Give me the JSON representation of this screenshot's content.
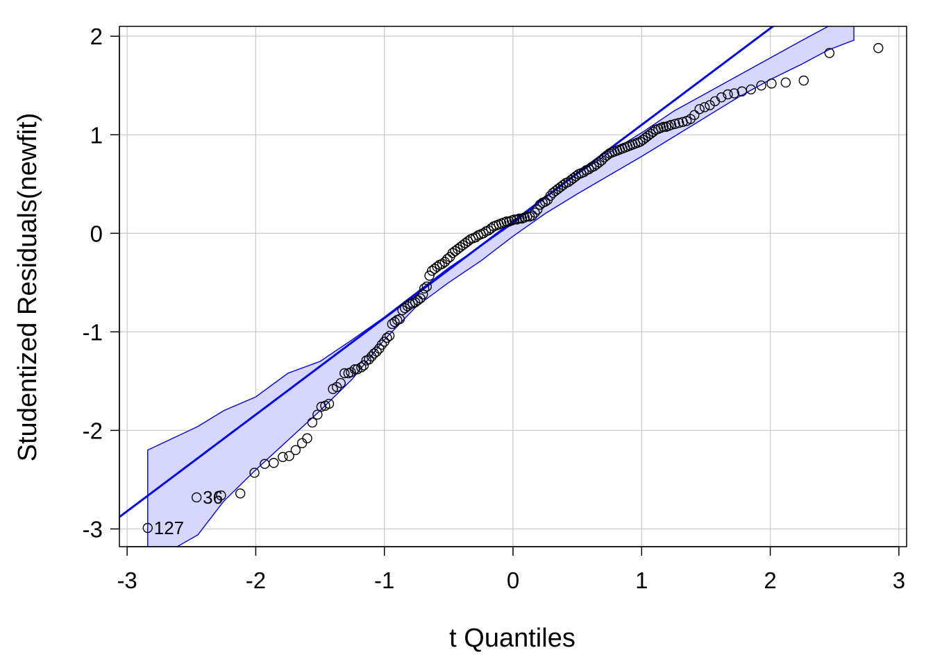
{
  "chart_data": {
    "type": "scatter",
    "title": "",
    "xlabel": "t Quantiles",
    "ylabel": "Studentized Residuals(newfit)",
    "xlim": [
      -3.06,
      3.06
    ],
    "ylim": [
      -3.18,
      2.1
    ],
    "xticks": [
      "-3",
      "-2",
      "-1",
      "0",
      "1",
      "2",
      "3"
    ],
    "yticks": [
      "-3",
      "-2",
      "-1",
      "0",
      "1",
      "2"
    ],
    "grid": true,
    "colors": {
      "points": "#000000",
      "line": "#0000ee",
      "envelope_fill": "#d6d6ff",
      "envelope_edge": "#0000ee",
      "grid": "#cccccc",
      "axis": "#000000"
    },
    "reference_line": {
      "intercept": 0.12,
      "slope": 0.98
    },
    "envelope": {
      "x": [
        -2.84,
        -2.45,
        -2.25,
        -2.0,
        -1.75,
        -1.5,
        -1.25,
        -1.0,
        -0.75,
        -0.5,
        -0.25,
        0.0,
        0.25,
        0.5,
        0.75,
        1.0,
        1.25,
        1.5,
        1.75,
        2.0,
        2.25,
        2.45,
        2.65
      ],
      "upper": [
        -2.2,
        -1.96,
        -1.8,
        -1.66,
        -1.42,
        -1.3,
        -1.08,
        -0.85,
        -0.6,
        -0.35,
        -0.13,
        0.1,
        0.36,
        0.6,
        0.82,
        1.02,
        1.24,
        1.42,
        1.6,
        1.78,
        1.96,
        2.1,
        2.24
      ],
      "lower": [
        -3.35,
        -3.06,
        -2.72,
        -2.4,
        -2.1,
        -1.8,
        -1.48,
        -1.08,
        -0.74,
        -0.5,
        -0.28,
        -0.03,
        0.2,
        0.4,
        0.59,
        0.78,
        0.98,
        1.18,
        1.38,
        1.56,
        1.72,
        1.86,
        1.96
      ]
    },
    "points": [
      {
        "x": -2.84,
        "y": -2.99
      },
      {
        "x": -2.46,
        "y": -2.68
      },
      {
        "x": -2.27,
        "y": -2.66
      },
      {
        "x": -2.12,
        "y": -2.64
      },
      {
        "x": -2.01,
        "y": -2.43
      },
      {
        "x": -1.93,
        "y": -2.34
      },
      {
        "x": -1.86,
        "y": -2.33
      },
      {
        "x": -1.79,
        "y": -2.27
      },
      {
        "x": -1.74,
        "y": -2.26
      },
      {
        "x": -1.69,
        "y": -2.2
      },
      {
        "x": -1.64,
        "y": -2.13
      },
      {
        "x": -1.6,
        "y": -2.08
      },
      {
        "x": -1.56,
        "y": -1.92
      },
      {
        "x": -1.52,
        "y": -1.84
      },
      {
        "x": -1.49,
        "y": -1.76
      },
      {
        "x": -1.46,
        "y": -1.75
      },
      {
        "x": -1.43,
        "y": -1.73
      },
      {
        "x": -1.4,
        "y": -1.58
      },
      {
        "x": -1.37,
        "y": -1.56
      },
      {
        "x": -1.34,
        "y": -1.52
      },
      {
        "x": -1.31,
        "y": -1.42
      },
      {
        "x": -1.28,
        "y": -1.42
      },
      {
        "x": -1.26,
        "y": -1.41
      },
      {
        "x": -1.23,
        "y": -1.38
      },
      {
        "x": -1.21,
        "y": -1.38
      },
      {
        "x": -1.18,
        "y": -1.36
      },
      {
        "x": -1.16,
        "y": -1.34
      },
      {
        "x": -1.14,
        "y": -1.29
      },
      {
        "x": -1.12,
        "y": -1.28
      },
      {
        "x": -1.1,
        "y": -1.25
      },
      {
        "x": -1.08,
        "y": -1.22
      },
      {
        "x": -1.06,
        "y": -1.2
      },
      {
        "x": -1.04,
        "y": -1.17
      },
      {
        "x": -1.02,
        "y": -1.13
      },
      {
        "x": -1.0,
        "y": -1.1
      },
      {
        "x": -0.98,
        "y": -1.06
      },
      {
        "x": -0.96,
        "y": -1.04
      },
      {
        "x": -0.94,
        "y": -0.92
      },
      {
        "x": -0.92,
        "y": -0.9
      },
      {
        "x": -0.9,
        "y": -0.88
      },
      {
        "x": -0.88,
        "y": -0.87
      },
      {
        "x": -0.86,
        "y": -0.78
      },
      {
        "x": -0.84,
        "y": -0.76
      },
      {
        "x": -0.82,
        "y": -0.74
      },
      {
        "x": -0.8,
        "y": -0.72
      },
      {
        "x": -0.78,
        "y": -0.71
      },
      {
        "x": -0.76,
        "y": -0.7
      },
      {
        "x": -0.74,
        "y": -0.68
      },
      {
        "x": -0.72,
        "y": -0.66
      },
      {
        "x": -0.7,
        "y": -0.62
      },
      {
        "x": -0.69,
        "y": -0.56
      },
      {
        "x": -0.67,
        "y": -0.54
      },
      {
        "x": -0.65,
        "y": -0.43
      },
      {
        "x": -0.63,
        "y": -0.38
      },
      {
        "x": -0.61,
        "y": -0.36
      },
      {
        "x": -0.59,
        "y": -0.34
      },
      {
        "x": -0.57,
        "y": -0.32
      },
      {
        "x": -0.55,
        "y": -0.31
      },
      {
        "x": -0.53,
        "y": -0.29
      },
      {
        "x": -0.51,
        "y": -0.26
      },
      {
        "x": -0.49,
        "y": -0.24
      },
      {
        "x": -0.47,
        "y": -0.2
      },
      {
        "x": -0.45,
        "y": -0.18
      },
      {
        "x": -0.43,
        "y": -0.16
      },
      {
        "x": -0.41,
        "y": -0.14
      },
      {
        "x": -0.39,
        "y": -0.12
      },
      {
        "x": -0.37,
        "y": -0.1
      },
      {
        "x": -0.35,
        "y": -0.08
      },
      {
        "x": -0.33,
        "y": -0.06
      },
      {
        "x": -0.31,
        "y": -0.05
      },
      {
        "x": -0.29,
        "y": -0.04
      },
      {
        "x": -0.27,
        "y": -0.02
      },
      {
        "x": -0.25,
        "y": -0.01
      },
      {
        "x": -0.23,
        "y": 0.0
      },
      {
        "x": -0.21,
        "y": 0.02
      },
      {
        "x": -0.19,
        "y": 0.03
      },
      {
        "x": -0.17,
        "y": 0.05
      },
      {
        "x": -0.15,
        "y": 0.07
      },
      {
        "x": -0.13,
        "y": 0.08
      },
      {
        "x": -0.11,
        "y": 0.09
      },
      {
        "x": -0.09,
        "y": 0.1
      },
      {
        "x": -0.07,
        "y": 0.11
      },
      {
        "x": -0.05,
        "y": 0.12
      },
      {
        "x": -0.03,
        "y": 0.12
      },
      {
        "x": -0.01,
        "y": 0.13
      },
      {
        "x": 0.01,
        "y": 0.14
      },
      {
        "x": 0.03,
        "y": 0.14
      },
      {
        "x": 0.05,
        "y": 0.15
      },
      {
        "x": 0.07,
        "y": 0.15
      },
      {
        "x": 0.09,
        "y": 0.16
      },
      {
        "x": 0.11,
        "y": 0.17
      },
      {
        "x": 0.13,
        "y": 0.17
      },
      {
        "x": 0.15,
        "y": 0.18
      },
      {
        "x": 0.17,
        "y": 0.21
      },
      {
        "x": 0.19,
        "y": 0.24
      },
      {
        "x": 0.21,
        "y": 0.29
      },
      {
        "x": 0.23,
        "y": 0.31
      },
      {
        "x": 0.25,
        "y": 0.32
      },
      {
        "x": 0.27,
        "y": 0.34
      },
      {
        "x": 0.29,
        "y": 0.38
      },
      {
        "x": 0.31,
        "y": 0.41
      },
      {
        "x": 0.33,
        "y": 0.43
      },
      {
        "x": 0.35,
        "y": 0.45
      },
      {
        "x": 0.37,
        "y": 0.47
      },
      {
        "x": 0.39,
        "y": 0.49
      },
      {
        "x": 0.41,
        "y": 0.51
      },
      {
        "x": 0.43,
        "y": 0.52
      },
      {
        "x": 0.45,
        "y": 0.54
      },
      {
        "x": 0.47,
        "y": 0.56
      },
      {
        "x": 0.49,
        "y": 0.58
      },
      {
        "x": 0.51,
        "y": 0.6
      },
      {
        "x": 0.53,
        "y": 0.61
      },
      {
        "x": 0.55,
        "y": 0.62
      },
      {
        "x": 0.57,
        "y": 0.64
      },
      {
        "x": 0.59,
        "y": 0.65
      },
      {
        "x": 0.61,
        "y": 0.67
      },
      {
        "x": 0.63,
        "y": 0.68
      },
      {
        "x": 0.65,
        "y": 0.7
      },
      {
        "x": 0.67,
        "y": 0.72
      },
      {
        "x": 0.69,
        "y": 0.74
      },
      {
        "x": 0.71,
        "y": 0.77
      },
      {
        "x": 0.73,
        "y": 0.79
      },
      {
        "x": 0.75,
        "y": 0.81
      },
      {
        "x": 0.77,
        "y": 0.82
      },
      {
        "x": 0.79,
        "y": 0.83
      },
      {
        "x": 0.81,
        "y": 0.84
      },
      {
        "x": 0.83,
        "y": 0.85
      },
      {
        "x": 0.85,
        "y": 0.86
      },
      {
        "x": 0.87,
        "y": 0.87
      },
      {
        "x": 0.89,
        "y": 0.88
      },
      {
        "x": 0.91,
        "y": 0.89
      },
      {
        "x": 0.93,
        "y": 0.9
      },
      {
        "x": 0.95,
        "y": 0.91
      },
      {
        "x": 0.97,
        "y": 0.92
      },
      {
        "x": 0.99,
        "y": 0.93
      },
      {
        "x": 1.01,
        "y": 0.95
      },
      {
        "x": 1.03,
        "y": 0.97
      },
      {
        "x": 1.05,
        "y": 0.99
      },
      {
        "x": 1.07,
        "y": 1.01
      },
      {
        "x": 1.09,
        "y": 1.03
      },
      {
        "x": 1.11,
        "y": 1.05
      },
      {
        "x": 1.13,
        "y": 1.06
      },
      {
        "x": 1.15,
        "y": 1.07
      },
      {
        "x": 1.17,
        "y": 1.08
      },
      {
        "x": 1.19,
        "y": 1.08
      },
      {
        "x": 1.21,
        "y": 1.09
      },
      {
        "x": 1.23,
        "y": 1.1
      },
      {
        "x": 1.26,
        "y": 1.11
      },
      {
        "x": 1.29,
        "y": 1.12
      },
      {
        "x": 1.32,
        "y": 1.13
      },
      {
        "x": 1.35,
        "y": 1.14
      },
      {
        "x": 1.38,
        "y": 1.16
      },
      {
        "x": 1.41,
        "y": 1.2
      },
      {
        "x": 1.45,
        "y": 1.26
      },
      {
        "x": 1.49,
        "y": 1.28
      },
      {
        "x": 1.53,
        "y": 1.3
      },
      {
        "x": 1.57,
        "y": 1.34
      },
      {
        "x": 1.62,
        "y": 1.38
      },
      {
        "x": 1.67,
        "y": 1.41
      },
      {
        "x": 1.72,
        "y": 1.42
      },
      {
        "x": 1.78,
        "y": 1.44
      },
      {
        "x": 1.85,
        "y": 1.46
      },
      {
        "x": 1.93,
        "y": 1.5
      },
      {
        "x": 2.01,
        "y": 1.52
      },
      {
        "x": 2.12,
        "y": 1.53
      },
      {
        "x": 2.26,
        "y": 1.55
      },
      {
        "x": 2.46,
        "y": 1.83
      },
      {
        "x": 2.84,
        "y": 1.88
      }
    ],
    "annotations": [
      {
        "text": "127",
        "x": -2.84,
        "y": -2.99
      },
      {
        "text": "36",
        "x": -2.46,
        "y": -2.68
      }
    ]
  }
}
